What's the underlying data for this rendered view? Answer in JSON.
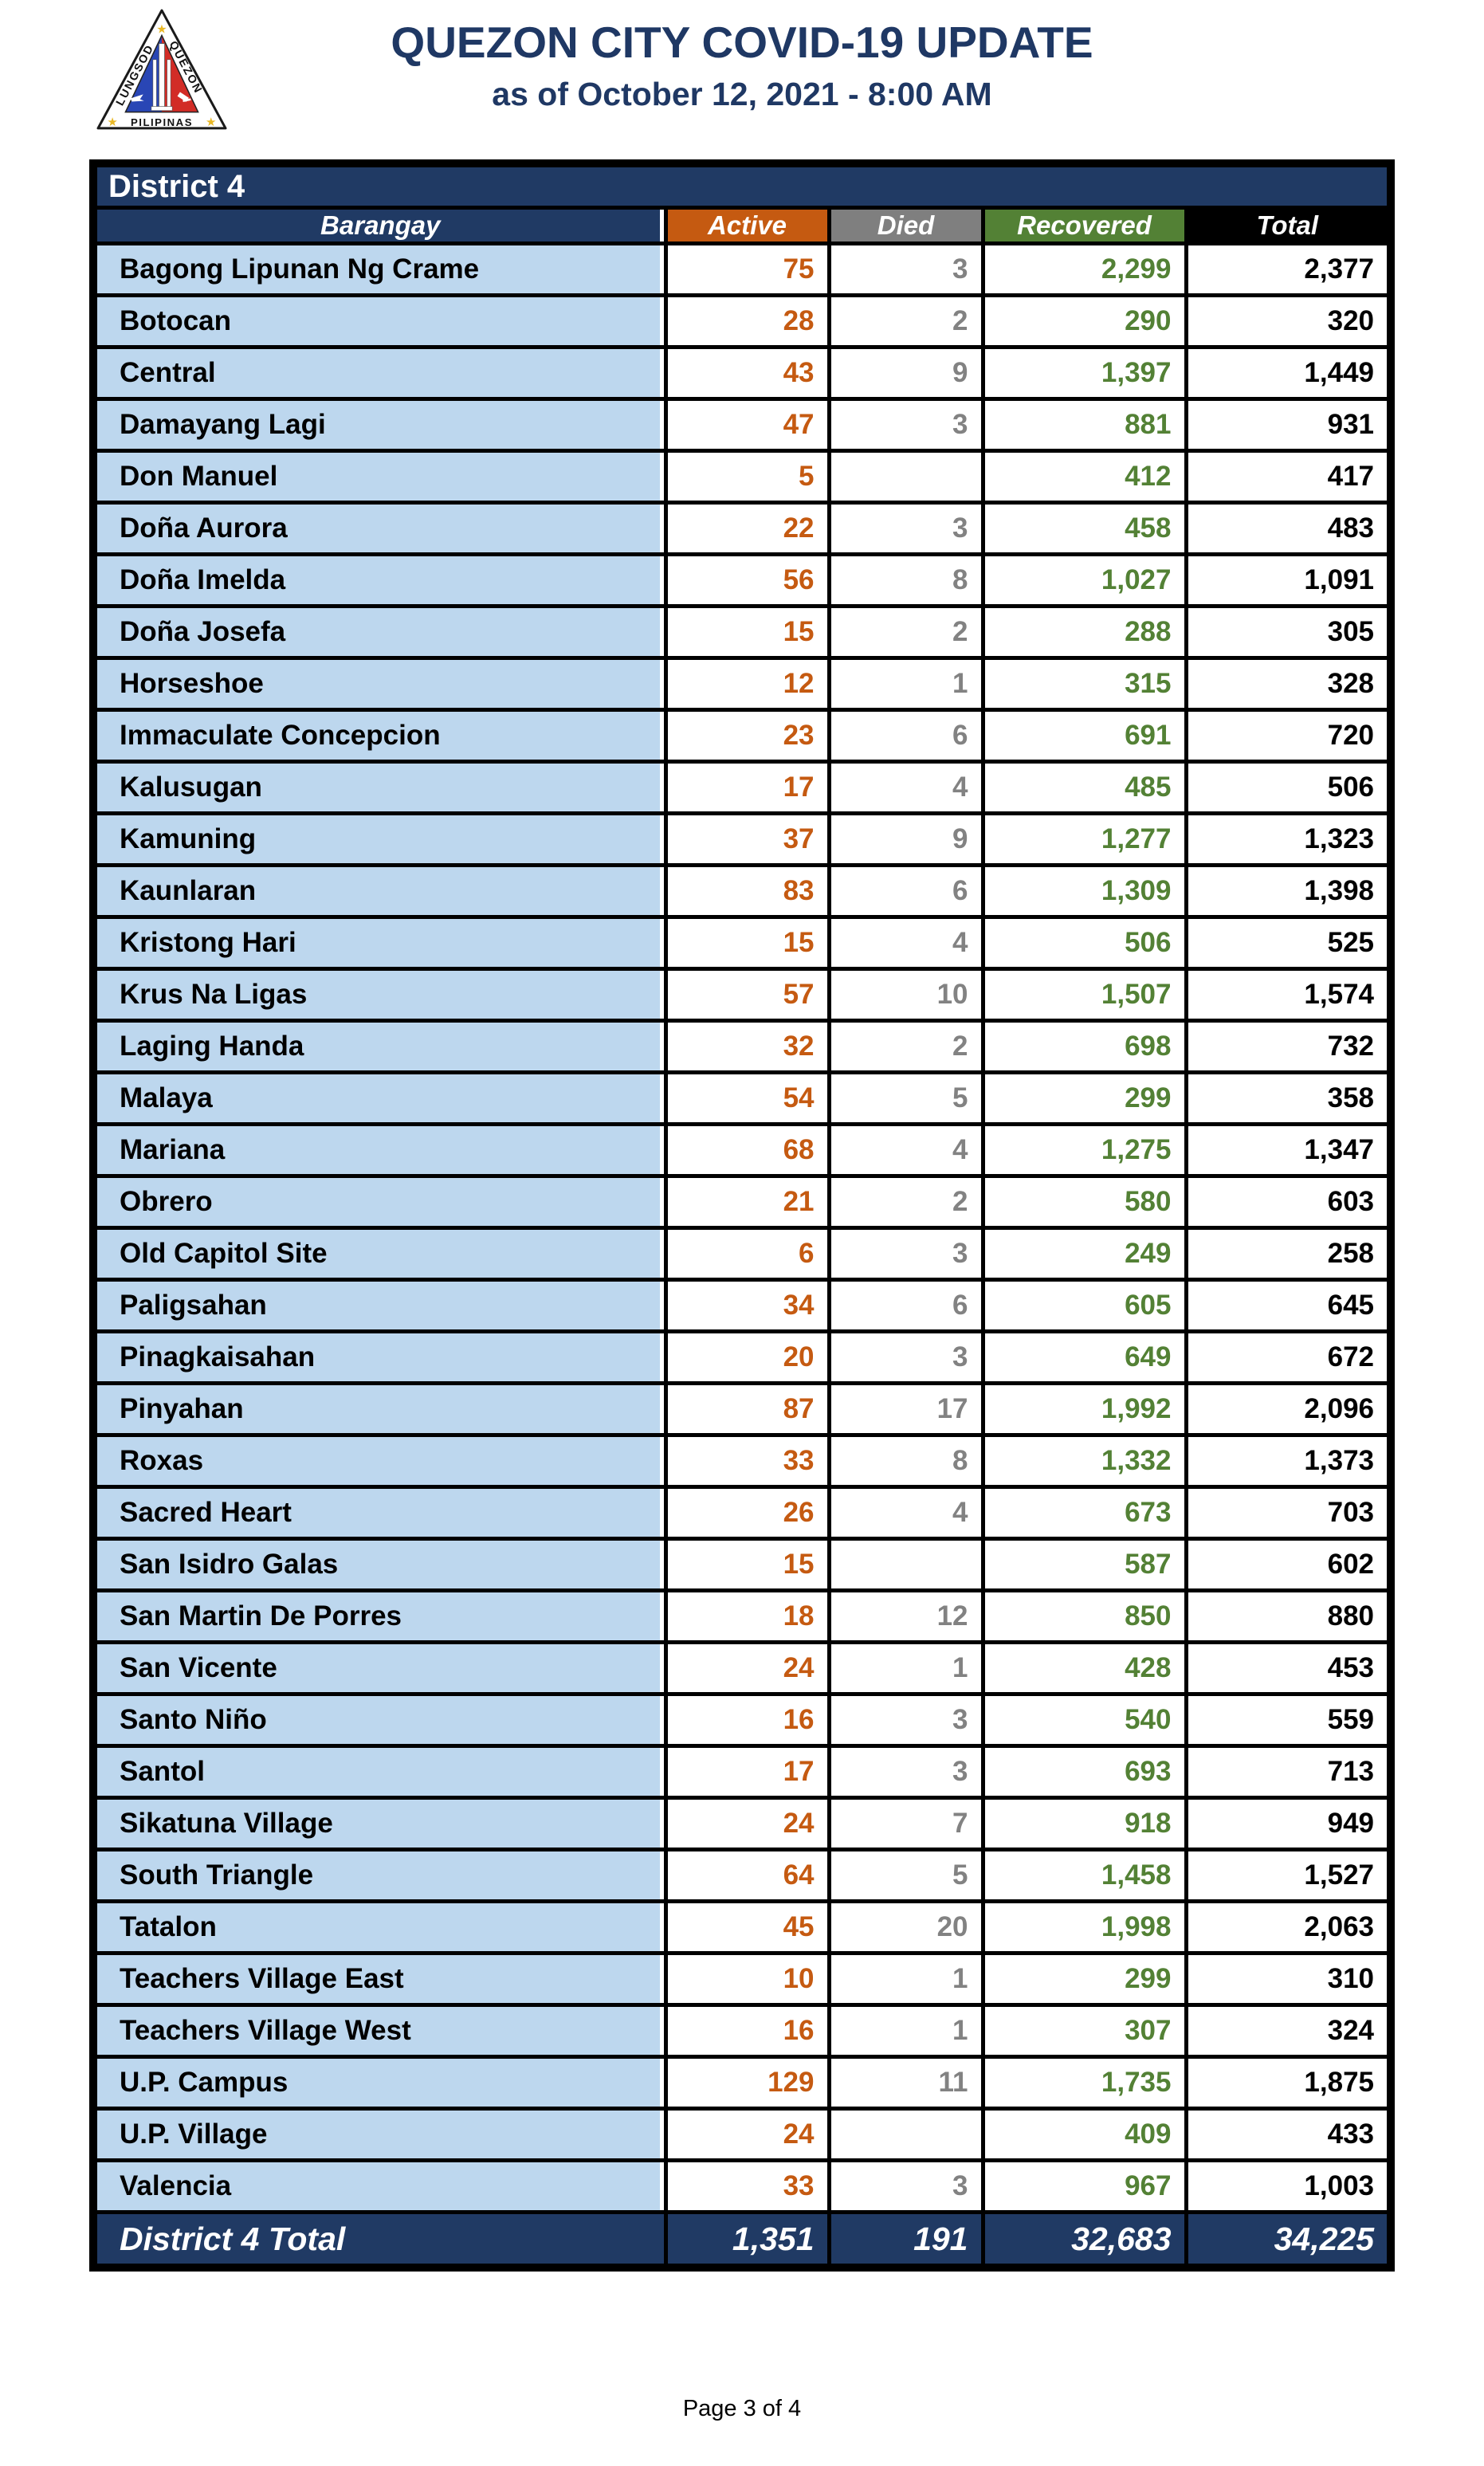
{
  "header": {
    "title": "QUEZON CITY COVID-19 UPDATE",
    "subtitle": "as of October 12, 2021 - 8:00 AM"
  },
  "logo": {
    "lungsod": "LUNGSOD",
    "quezon": "QUEZON",
    "pilipinas": "PILIPINAS"
  },
  "table": {
    "district_label": "District 4",
    "columns": [
      "Barangay",
      "Active",
      "Died",
      "Recovered",
      "Total"
    ],
    "rows": [
      {
        "barangay": "Bagong Lipunan Ng Crame",
        "active": "75",
        "died": "3",
        "recovered": "2,299",
        "total": "2,377"
      },
      {
        "barangay": "Botocan",
        "active": "28",
        "died": "2",
        "recovered": "290",
        "total": "320"
      },
      {
        "barangay": "Central",
        "active": "43",
        "died": "9",
        "recovered": "1,397",
        "total": "1,449"
      },
      {
        "barangay": "Damayang Lagi",
        "active": "47",
        "died": "3",
        "recovered": "881",
        "total": "931"
      },
      {
        "barangay": "Don Manuel",
        "active": "5",
        "died": "",
        "recovered": "412",
        "total": "417"
      },
      {
        "barangay": "Doña Aurora",
        "active": "22",
        "died": "3",
        "recovered": "458",
        "total": "483"
      },
      {
        "barangay": "Doña Imelda",
        "active": "56",
        "died": "8",
        "recovered": "1,027",
        "total": "1,091"
      },
      {
        "barangay": "Doña Josefa",
        "active": "15",
        "died": "2",
        "recovered": "288",
        "total": "305"
      },
      {
        "barangay": "Horseshoe",
        "active": "12",
        "died": "1",
        "recovered": "315",
        "total": "328"
      },
      {
        "barangay": "Immaculate Concepcion",
        "active": "23",
        "died": "6",
        "recovered": "691",
        "total": "720"
      },
      {
        "barangay": "Kalusugan",
        "active": "17",
        "died": "4",
        "recovered": "485",
        "total": "506"
      },
      {
        "barangay": "Kamuning",
        "active": "37",
        "died": "9",
        "recovered": "1,277",
        "total": "1,323"
      },
      {
        "barangay": "Kaunlaran",
        "active": "83",
        "died": "6",
        "recovered": "1,309",
        "total": "1,398"
      },
      {
        "barangay": "Kristong Hari",
        "active": "15",
        "died": "4",
        "recovered": "506",
        "total": "525"
      },
      {
        "barangay": "Krus Na Ligas",
        "active": "57",
        "died": "10",
        "recovered": "1,507",
        "total": "1,574"
      },
      {
        "barangay": "Laging Handa",
        "active": "32",
        "died": "2",
        "recovered": "698",
        "total": "732"
      },
      {
        "barangay": "Malaya",
        "active": "54",
        "died": "5",
        "recovered": "299",
        "total": "358"
      },
      {
        "barangay": "Mariana",
        "active": "68",
        "died": "4",
        "recovered": "1,275",
        "total": "1,347"
      },
      {
        "barangay": "Obrero",
        "active": "21",
        "died": "2",
        "recovered": "580",
        "total": "603"
      },
      {
        "barangay": "Old Capitol Site",
        "active": "6",
        "died": "3",
        "recovered": "249",
        "total": "258"
      },
      {
        "barangay": "Paligsahan",
        "active": "34",
        "died": "6",
        "recovered": "605",
        "total": "645"
      },
      {
        "barangay": "Pinagkaisahan",
        "active": "20",
        "died": "3",
        "recovered": "649",
        "total": "672"
      },
      {
        "barangay": "Pinyahan",
        "active": "87",
        "died": "17",
        "recovered": "1,992",
        "total": "2,096"
      },
      {
        "barangay": "Roxas",
        "active": "33",
        "died": "8",
        "recovered": "1,332",
        "total": "1,373"
      },
      {
        "barangay": "Sacred Heart",
        "active": "26",
        "died": "4",
        "recovered": "673",
        "total": "703"
      },
      {
        "barangay": "San Isidro Galas",
        "active": "15",
        "died": "",
        "recovered": "587",
        "total": "602"
      },
      {
        "barangay": "San Martin De Porres",
        "active": "18",
        "died": "12",
        "recovered": "850",
        "total": "880"
      },
      {
        "barangay": "San Vicente",
        "active": "24",
        "died": "1",
        "recovered": "428",
        "total": "453"
      },
      {
        "barangay": "Santo Niño",
        "active": "16",
        "died": "3",
        "recovered": "540",
        "total": "559"
      },
      {
        "barangay": "Santol",
        "active": "17",
        "died": "3",
        "recovered": "693",
        "total": "713"
      },
      {
        "barangay": "Sikatuna Village",
        "active": "24",
        "died": "7",
        "recovered": "918",
        "total": "949"
      },
      {
        "barangay": "South Triangle",
        "active": "64",
        "died": "5",
        "recovered": "1,458",
        "total": "1,527"
      },
      {
        "barangay": "Tatalon",
        "active": "45",
        "died": "20",
        "recovered": "1,998",
        "total": "2,063"
      },
      {
        "barangay": "Teachers Village East",
        "active": "10",
        "died": "1",
        "recovered": "299",
        "total": "310"
      },
      {
        "barangay": "Teachers Village West",
        "active": "16",
        "died": "1",
        "recovered": "307",
        "total": "324"
      },
      {
        "barangay": "U.P. Campus",
        "active": "129",
        "died": "11",
        "recovered": "1,735",
        "total": "1,875"
      },
      {
        "barangay": "U.P. Village",
        "active": "24",
        "died": "",
        "recovered": "409",
        "total": "433"
      },
      {
        "barangay": "Valencia",
        "active": "33",
        "died": "3",
        "recovered": "967",
        "total": "1,003"
      }
    ],
    "total_row": {
      "label": "District 4 Total",
      "active": "1,351",
      "died": "191",
      "recovered": "32,683",
      "total": "34,225"
    }
  },
  "footer": {
    "page_label": "Page 3 of 4"
  },
  "colors": {
    "navy": "#203A64",
    "navy_text": "#1F3864",
    "orange": "#C55A11",
    "gray": "#7F7F7F",
    "green": "#538135",
    "header_black": "#000000",
    "row_bg": "#BDD7EE",
    "value_orange": "#C55A11",
    "value_gray": "#828282",
    "value_green": "#538135",
    "border": "#000000",
    "star_yellow": "#E9B826",
    "flag_blue": "#2946B5",
    "flag_red": "#D22C26"
  }
}
